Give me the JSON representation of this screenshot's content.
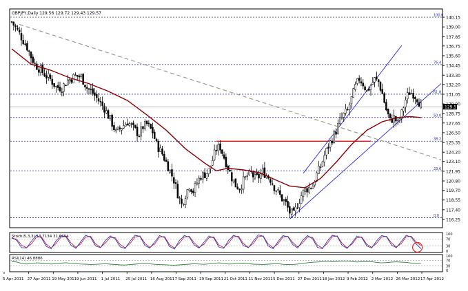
{
  "colors": {
    "background": "#ffffff",
    "frame": "#000000",
    "candle": "#000000",
    "ma_line": "#8b0000",
    "fib_lines": "#1e2aa8",
    "channel": "#2b2bdd",
    "trendline": "#9a9a85",
    "support_line": "#cc0000",
    "stoch_k": "#1f3bd0",
    "stoch_d": "#d01f1f",
    "rsi": "#2e7d32",
    "marker": "#e02020",
    "current_price_bg": "#000000",
    "current_price_text": "#ffffff"
  },
  "chart_data": [
    {
      "type": "candlestick",
      "title": "GBPJPY,Daily  129.56 129.72 129.43 129.57",
      "y_ticks": [
        "140.15",
        "139.00",
        "137.85",
        "136.75",
        "135.60",
        "134.45",
        "133.30",
        "132.20",
        "131.05",
        "129.90",
        "128.75",
        "127.65",
        "126.50",
        "125.35",
        "124.20",
        "123.10",
        "121.95",
        "120.80",
        "119.70",
        "118.55",
        "117.40",
        "116.25"
      ],
      "ylim": [
        116.25,
        140.15
      ],
      "current_price": "129.57",
      "x_labels": [
        "5 Apr 2011",
        "27 Apr 2011",
        "19 May 2011",
        "9 Jun 2011",
        "1 Jul 2011",
        "25 Jul 2011",
        "16 Aug 2011",
        "7 Sep 2011",
        "29 Sep 2011",
        "21 Oct 2011",
        "11 Nov 2011",
        "5 Dec 2011",
        "27 Dec 2011",
        "18 Jan 2012",
        "9 Feb 2012",
        "2 Mar 2012",
        "26 Mar 2012",
        "17 Apr 2012"
      ],
      "fib_levels": [
        {
          "label": "100.0",
          "value": 140.15
        },
        {
          "label": "76.4",
          "value": 134.55
        },
        {
          "label": "61.8",
          "value": 131.05
        },
        {
          "label": "50.0",
          "value": 128.3
        },
        {
          "label": "38.2",
          "value": 125.5
        },
        {
          "label": "23.6",
          "value": 122.0
        },
        {
          "label": "0.0",
          "value": 116.45
        }
      ],
      "support_level": 125.5,
      "price_path": [
        [
          0,
          139.6
        ],
        [
          4,
          138.2
        ],
        [
          8,
          136.6
        ],
        [
          10,
          135.5
        ],
        [
          12,
          134.6
        ],
        [
          15,
          133.9
        ],
        [
          18,
          133.2
        ],
        [
          20,
          132.8
        ],
        [
          23,
          131.9
        ],
        [
          26,
          131.8
        ],
        [
          29,
          132.7
        ],
        [
          33,
          133.2
        ],
        [
          36,
          133.1
        ],
        [
          39,
          131.8
        ],
        [
          42,
          131.2
        ],
        [
          45,
          130.3
        ],
        [
          48,
          129.4
        ],
        [
          50,
          128.5
        ],
        [
          52,
          127.6
        ],
        [
          54,
          126.5
        ],
        [
          57,
          127.2
        ],
        [
          60,
          127.8
        ],
        [
          63,
          127.0
        ],
        [
          66,
          126.3
        ],
        [
          68,
          127.2
        ],
        [
          70,
          127.5
        ],
        [
          73,
          126.6
        ],
        [
          75,
          125.1
        ],
        [
          78,
          124.0
        ],
        [
          81,
          122.5
        ],
        [
          84,
          120.9
        ],
        [
          86,
          119.3
        ],
        [
          88,
          118.0
        ],
        [
          90,
          119.2
        ],
        [
          92,
          120.3
        ],
        [
          94,
          119.6
        ],
        [
          96,
          120.6
        ],
        [
          98,
          121.4
        ],
        [
          100,
          121.6
        ],
        [
          102,
          122.0
        ],
        [
          104,
          123.3
        ],
        [
          106,
          124.6
        ],
        [
          108,
          124.8
        ],
        [
          110,
          123.6
        ],
        [
          112,
          122.4
        ],
        [
          114,
          121.2
        ],
        [
          116,
          120.3
        ],
        [
          118,
          120.0
        ],
        [
          120,
          120.8
        ],
        [
          122,
          121.4
        ],
        [
          124,
          121.7
        ],
        [
          126,
          121.1
        ],
        [
          128,
          121.3
        ],
        [
          130,
          121.9
        ],
        [
          132,
          121.5
        ],
        [
          134,
          121.0
        ],
        [
          136,
          120.1
        ],
        [
          138,
          119.4
        ],
        [
          140,
          118.7
        ],
        [
          142,
          118.1
        ],
        [
          144,
          117.1
        ],
        [
          146,
          116.8
        ],
        [
          148,
          118.0
        ],
        [
          150,
          119.1
        ],
        [
          152,
          119.8
        ],
        [
          154,
          120.0
        ],
        [
          156,
          120.3
        ],
        [
          158,
          121.6
        ],
        [
          160,
          122.5
        ],
        [
          162,
          123.8
        ],
        [
          164,
          124.9
        ],
        [
          166,
          125.8
        ],
        [
          168,
          126.7
        ],
        [
          170,
          127.9
        ],
        [
          172,
          128.6
        ],
        [
          174,
          129.1
        ],
        [
          176,
          130.5
        ],
        [
          178,
          131.9
        ],
        [
          180,
          132.9
        ],
        [
          182,
          132.3
        ],
        [
          184,
          131.4
        ],
        [
          186,
          132.1
        ],
        [
          188,
          132.8
        ],
        [
          190,
          132.5
        ],
        [
          192,
          131.1
        ],
        [
          194,
          129.2
        ],
        [
          196,
          127.9
        ],
        [
          198,
          128.3
        ],
        [
          200,
          127.6
        ],
        [
          202,
          128.8
        ],
        [
          204,
          130.4
        ],
        [
          206,
          131.3
        ],
        [
          208,
          131.1
        ],
        [
          210,
          130.6
        ],
        [
          212,
          129.6
        ]
      ],
      "ma_path": [
        [
          0,
          136.4
        ],
        [
          10,
          134.6
        ],
        [
          20,
          133.9
        ],
        [
          30,
          133.0
        ],
        [
          40,
          132.3
        ],
        [
          50,
          131.4
        ],
        [
          60,
          130.3
        ],
        [
          70,
          128.6
        ],
        [
          80,
          126.8
        ],
        [
          90,
          124.6
        ],
        [
          100,
          122.9
        ],
        [
          106,
          122.0
        ],
        [
          112,
          122.3
        ],
        [
          120,
          122.1
        ],
        [
          128,
          121.8
        ],
        [
          136,
          121.0
        ],
        [
          144,
          120.2
        ],
        [
          152,
          120.0
        ],
        [
          160,
          121.1
        ],
        [
          168,
          123.0
        ],
        [
          176,
          125.1
        ],
        [
          184,
          126.8
        ],
        [
          192,
          127.8
        ],
        [
          200,
          128.3
        ],
        [
          206,
          128.4
        ],
        [
          212,
          128.3
        ]
      ]
    },
    {
      "type": "line",
      "title": "Stoch(5,3,3) 13.7134 31.6654",
      "y_ticks": [
        "100",
        "70",
        "30",
        "0"
      ],
      "ylim": [
        0,
        100
      ],
      "series": [
        {
          "values": [
            80,
            62,
            20,
            18,
            58,
            92,
            78,
            28,
            14,
            60,
            90,
            84,
            35,
            16,
            55,
            93,
            80,
            30,
            20,
            62,
            88,
            70,
            25,
            15,
            58,
            92,
            86,
            33,
            18,
            54,
            90,
            79,
            27,
            12,
            61,
            90,
            82,
            36,
            18,
            52,
            88,
            76,
            24,
            16,
            63,
            92,
            80,
            32,
            20,
            58,
            94,
            86,
            30,
            14,
            55,
            90,
            84,
            38,
            18,
            62,
            90,
            72,
            22,
            14,
            58,
            92,
            86,
            34,
            16,
            48,
            88,
            78,
            30,
            18,
            60,
            90,
            84,
            36,
            20,
            56,
            92,
            82,
            42,
            14
          ]
        },
        {
          "values": [
            74,
            70,
            34,
            20,
            42,
            82,
            84,
            40,
            18,
            45,
            82,
            88,
            48,
            22,
            42,
            82,
            86,
            42,
            22,
            48,
            80,
            78,
            38,
            19,
            44,
            82,
            88,
            45,
            22,
            42,
            82,
            84,
            38,
            18,
            46,
            82,
            86,
            48,
            22,
            40,
            78,
            82,
            36,
            20,
            48,
            84,
            86,
            44,
            22,
            45,
            84,
            88,
            42,
            20,
            42,
            82,
            86,
            50,
            24,
            48,
            82,
            80,
            34,
            18,
            44,
            84,
            88,
            46,
            20,
            40,
            78,
            82,
            40,
            22,
            46,
            82,
            86,
            48,
            24,
            44,
            84,
            86,
            54,
            31
          ]
        }
      ]
    },
    {
      "type": "line",
      "title": "RSI(14) 46.8886",
      "y_ticks": [
        "100",
        "70",
        "30",
        "0"
      ],
      "ylim": [
        0,
        100
      ],
      "series": [
        {
          "values": [
            62,
            58,
            48,
            44,
            47,
            52,
            50,
            46,
            44,
            46,
            50,
            53,
            49,
            46,
            44,
            43,
            41,
            42,
            44,
            46,
            43,
            41,
            38,
            37,
            40,
            43,
            46,
            48,
            45,
            42,
            40,
            39,
            37,
            36,
            38,
            41,
            43,
            46,
            44,
            42,
            45,
            49,
            52,
            48,
            44,
            45,
            47,
            50,
            46,
            43,
            42,
            41,
            43,
            45,
            46,
            42,
            40,
            41,
            44,
            48,
            53,
            56,
            58,
            61,
            63,
            60,
            62,
            65,
            64,
            61,
            58,
            60,
            62,
            60,
            55,
            52,
            54,
            57,
            59,
            57,
            55,
            51,
            47,
            47
          ]
        }
      ]
    }
  ]
}
